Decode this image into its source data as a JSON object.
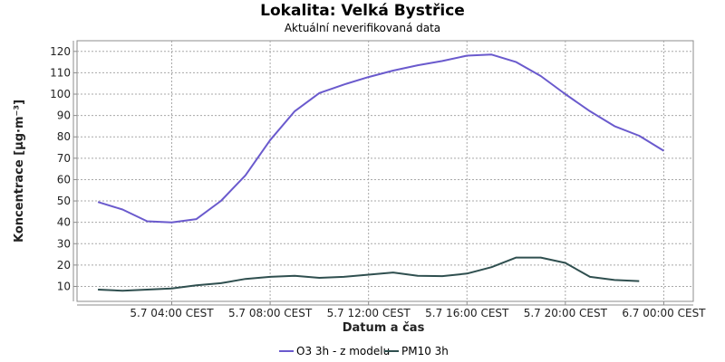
{
  "chart_data": {
    "type": "line",
    "title": "Lokalita: Velká Bystřice",
    "subtitle": "Aktuální neverifikovaná data",
    "xlabel": "Datum a čas",
    "ylabel": "Koncentrace [µg·m⁻³]",
    "ylim": [
      3,
      125
    ],
    "yticks": [
      10,
      20,
      30,
      40,
      50,
      60,
      70,
      80,
      90,
      100,
      110,
      120
    ],
    "xlim": [
      -0.85,
      24.2
    ],
    "xticks": [
      {
        "x": 3,
        "label": "5.7 04:00 CEST"
      },
      {
        "x": 7,
        "label": "5.7 08:00 CEST"
      },
      {
        "x": 11,
        "label": "5.7 12:00 CEST"
      },
      {
        "x": 15,
        "label": "5.7 16:00 CEST"
      },
      {
        "x": 19,
        "label": "5.7 20:00 CEST"
      },
      {
        "x": 23,
        "label": "6.7 00:00 CEST"
      }
    ],
    "grid": true,
    "legend": "bottom",
    "series": [
      {
        "name": "O3 3h - z modelu",
        "color": "#6a5acd",
        "x": [
          0,
          1,
          2,
          3,
          4,
          5,
          6,
          7,
          8,
          9,
          10,
          11,
          12,
          13,
          14,
          15,
          16,
          17,
          18,
          19,
          20,
          21,
          22,
          23
        ],
        "y": [
          49.5,
          46,
          40.5,
          40,
          41.5,
          50,
          62,
          78.5,
          92,
          100.5,
          104.5,
          108,
          111,
          113.5,
          115.5,
          118,
          118.5,
          115,
          108.5,
          100,
          92,
          85,
          80.5,
          73.5
        ]
      },
      {
        "name": "PM10 3h",
        "color": "#2f4f4f",
        "x": [
          0,
          1,
          2,
          3,
          4,
          5,
          6,
          7,
          8,
          9,
          10,
          11,
          12,
          13,
          14,
          15,
          16,
          17,
          18,
          19,
          20,
          21,
          22
        ],
        "y": [
          8.5,
          8,
          8.5,
          9,
          10.5,
          11.5,
          13.5,
          14.5,
          15,
          14,
          14.5,
          15.5,
          16.5,
          15,
          14.8,
          16,
          19,
          23.5,
          23.5,
          21,
          14.5,
          13,
          12.5
        ]
      }
    ]
  }
}
